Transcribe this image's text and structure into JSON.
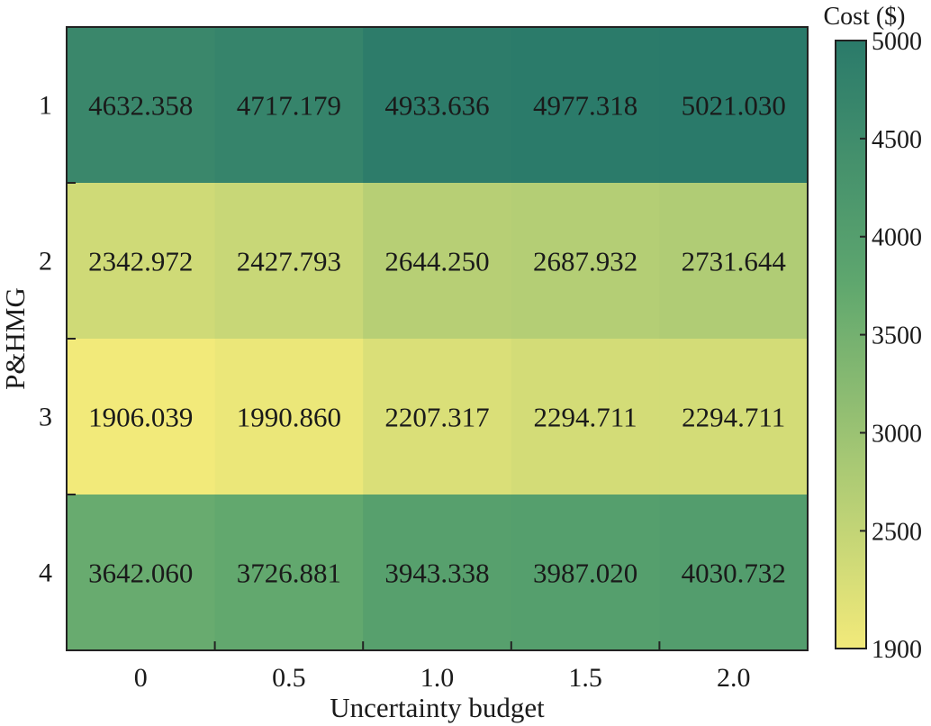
{
  "chart_data": {
    "type": "heatmap",
    "title": "",
    "xlabel": "Uncertainty budget",
    "ylabel": "P&HMG",
    "x_categories": [
      "0",
      "0.5",
      "1.0",
      "1.5",
      "2.0"
    ],
    "y_categories": [
      "1",
      "2",
      "3",
      "4"
    ],
    "values": [
      [
        4632.358,
        4717.179,
        4933.636,
        4977.318,
        5021.03
      ],
      [
        2342.972,
        2427.793,
        2644.25,
        2687.932,
        2731.644
      ],
      [
        1906.039,
        1990.86,
        2207.317,
        2294.711,
        2294.711
      ],
      [
        3642.06,
        3726.881,
        3943.338,
        3987.02,
        4030.732
      ]
    ],
    "value_labels": [
      [
        "4632.358",
        "4717.179",
        "4933.636",
        "4977.318",
        "5021.030"
      ],
      [
        "2342.972",
        "2427.793",
        "2644.250",
        "2687.932",
        "2731.644"
      ],
      [
        "1906.039",
        "1990.860",
        "2207.317",
        "2294.711",
        "2294.711"
      ],
      [
        "3642.060",
        "3726.881",
        "3943.338",
        "3987.020",
        "4030.732"
      ]
    ],
    "colorbar": {
      "title": "Cost ($)",
      "range": [
        1900,
        5000
      ],
      "ticks": [
        1900,
        2500,
        3000,
        3500,
        4000,
        4500,
        5000
      ],
      "tick_labels": [
        "1900",
        "2500",
        "3000",
        "3500",
        "4000",
        "4500",
        "5000"
      ],
      "colors": {
        "low": "#f2ea7a",
        "mid": "#5fa76e",
        "high": "#2a7a6a"
      }
    },
    "grid": false,
    "legend": "colorbar-right"
  }
}
